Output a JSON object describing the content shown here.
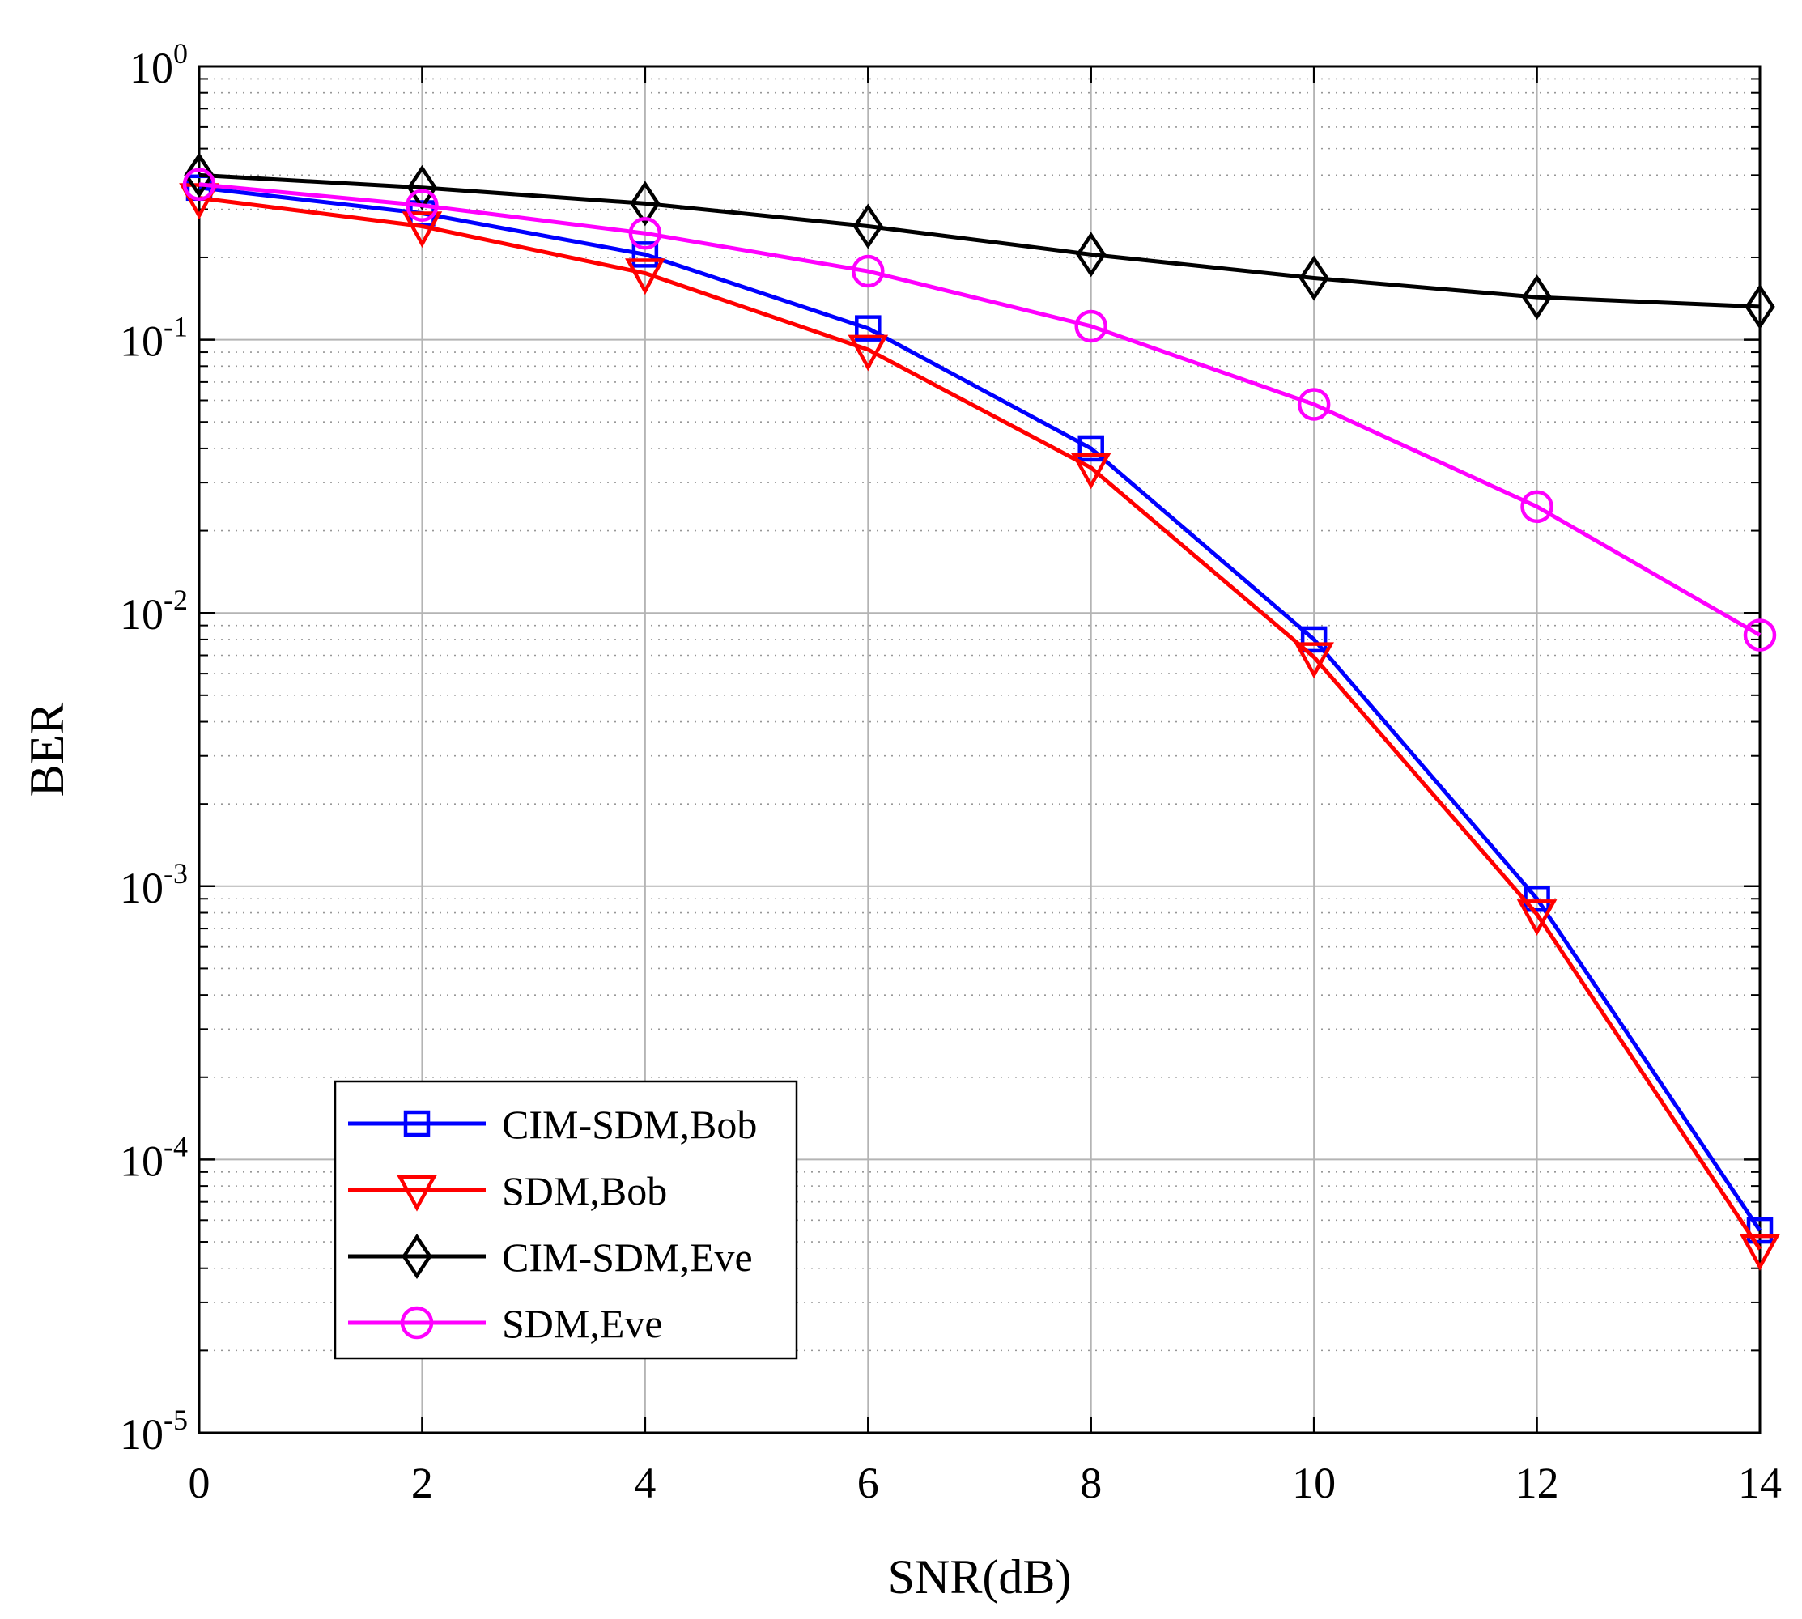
{
  "chart_data": {
    "type": "line",
    "xlabel": "SNR(dB)",
    "ylabel": "BER",
    "x": [
      0,
      2,
      4,
      6,
      8,
      10,
      12,
      14
    ],
    "xlim": [
      0,
      14
    ],
    "ylim": [
      1e-05,
      1
    ],
    "yscale": "log",
    "grid": true,
    "legend_position": "lower-left",
    "x_ticks": [
      "0",
      "2",
      "4",
      "6",
      "8",
      "10",
      "12",
      "14"
    ],
    "y_ticks": [
      {
        "value": 1,
        "base": "10",
        "exp": "0"
      },
      {
        "value": 0.1,
        "base": "10",
        "exp": "-1"
      },
      {
        "value": 0.01,
        "base": "10",
        "exp": "-2"
      },
      {
        "value": 0.001,
        "base": "10",
        "exp": "-3"
      },
      {
        "value": 0.0001,
        "base": "10",
        "exp": "-4"
      },
      {
        "value": 1e-05,
        "base": "10",
        "exp": "-5"
      }
    ],
    "series": [
      {
        "name": "CIM-SDM,Bob",
        "color": "#0000ff",
        "marker": "square",
        "values": [
          0.36,
          0.29,
          0.205,
          0.11,
          0.04,
          0.008,
          0.0009,
          5.5e-05
        ]
      },
      {
        "name": "SDM,Bob",
        "color": "#ff0000",
        "marker": "triangle-down",
        "values": [
          0.33,
          0.26,
          0.175,
          0.092,
          0.034,
          0.0069,
          0.00079,
          4.7e-05
        ]
      },
      {
        "name": "CIM-SDM,Eve",
        "color": "#000000",
        "marker": "diamond",
        "values": [
          0.4,
          0.36,
          0.315,
          0.26,
          0.205,
          0.168,
          0.143,
          0.132
        ]
      },
      {
        "name": "SDM,Eve",
        "color": "#ff00ff",
        "marker": "circle",
        "values": [
          0.37,
          0.31,
          0.245,
          0.178,
          0.112,
          0.058,
          0.0245,
          0.0083
        ]
      }
    ]
  }
}
